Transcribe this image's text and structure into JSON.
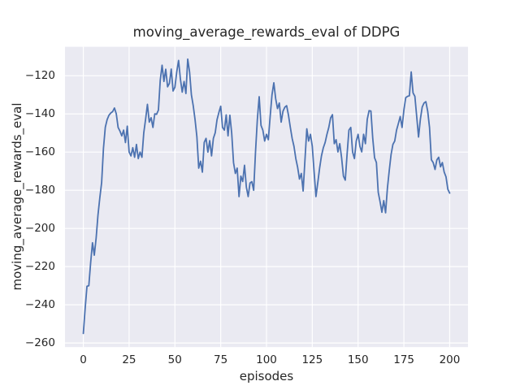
{
  "chart_data": {
    "type": "line",
    "title": "moving_average_rewards_eval of DDPG",
    "xlabel": "episodes",
    "ylabel": "moving_average_rewards_eval",
    "x_ticks": [
      0,
      25,
      50,
      75,
      100,
      125,
      150,
      175,
      200
    ],
    "y_ticks": [
      -120,
      -140,
      -160,
      -180,
      -200,
      -220,
      -240,
      -260
    ],
    "xlim": [
      -10,
      210
    ],
    "ylim": [
      -262.15,
      -104.85
    ],
    "grid": true,
    "legend_position": "none",
    "colors": {
      "line": "#4c72b0",
      "axes_background": "#eaeaf2",
      "grid": "#ffffff",
      "figure_background": "#ffffff",
      "text": "#262626"
    },
    "x_start": 0,
    "x_step": 1,
    "values": [
      -255,
      -242,
      -230.3,
      -230,
      -218,
      -207.5,
      -214,
      -205,
      -193,
      -184,
      -176,
      -158,
      -147,
      -143,
      -140.7,
      -139.5,
      -138.8,
      -136.9,
      -140,
      -147.1,
      -149,
      -151.5,
      -148.5,
      -155,
      -146.4,
      -159.9,
      -162,
      -157.7,
      -162.7,
      -156,
      -163.4,
      -160,
      -162.7,
      -149.9,
      -142.8,
      -135,
      -144.3,
      -142,
      -147.1,
      -140,
      -140.2,
      -138,
      -122.3,
      -114.5,
      -123,
      -116.6,
      -125.8,
      -124,
      -116.5,
      -128,
      -126,
      -118,
      -112,
      -121.8,
      -128.6,
      -123,
      -129.3,
      -111.3,
      -118,
      -130,
      -135.7,
      -143,
      -152,
      -168.4,
      -164.8,
      -170.5,
      -154.9,
      -152.8,
      -160,
      -154,
      -162,
      -152.8,
      -149.9,
      -143,
      -139.3,
      -136,
      -147.1,
      -148.5,
      -140.5,
      -151.5,
      -140.7,
      -150,
      -165.5,
      -171.2,
      -168.4,
      -183.3,
      -172.6,
      -175.4,
      -166.9,
      -178.3,
      -183.3,
      -176.2,
      -175.5,
      -180,
      -160,
      -143,
      -131,
      -146,
      -148.5,
      -154.2,
      -150.7,
      -153.5,
      -141.4,
      -130,
      -123.7,
      -132,
      -137.2,
      -134.3,
      -144.3,
      -138.6,
      -136.5,
      -135.7,
      -140.7,
      -147,
      -152.8,
      -157,
      -163.4,
      -168,
      -174.1,
      -171.2,
      -180.4,
      -164,
      -147.8,
      -154.2,
      -150.7,
      -157,
      -170.5,
      -183.3,
      -176,
      -168.4,
      -162,
      -157.8,
      -155,
      -150.7,
      -147.1,
      -142.1,
      -140.4,
      -155.6,
      -153.5,
      -159.9,
      -155.6,
      -163,
      -172.6,
      -174.7,
      -161,
      -148.5,
      -147.1,
      -159.9,
      -163.4,
      -154.2,
      -150.7,
      -157,
      -159.9,
      -150.7,
      -155.6,
      -142.8,
      -138.3,
      -138.5,
      -152.8,
      -163,
      -165.5,
      -181.1,
      -186,
      -191.5,
      -185.4,
      -191.8,
      -179,
      -169.8,
      -161.3,
      -156,
      -154.2,
      -148.5,
      -145,
      -141.4,
      -147.1,
      -138,
      -131.5,
      -130.8,
      -130.5,
      -118,
      -129,
      -130.8,
      -141.4,
      -152.1,
      -142.8,
      -136.4,
      -134.3,
      -133.6,
      -138.6,
      -147.1,
      -164,
      -165.5,
      -169.1,
      -164.1,
      -162.7,
      -167.7,
      -165.5,
      -170.5,
      -173,
      -179.5,
      -181.5
    ]
  }
}
